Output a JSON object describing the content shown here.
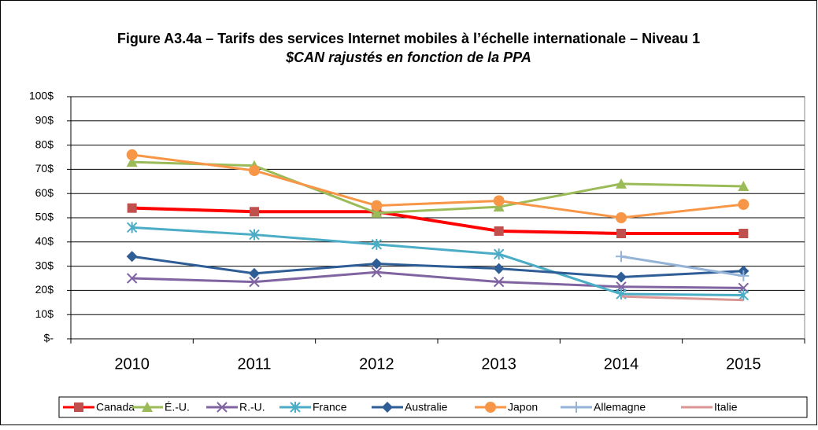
{
  "chart_data": {
    "type": "line",
    "title": "Figure A3.4a – Tarifs des services Internet mobiles à l’échelle internationale – Niveau 1",
    "subtitle": "$CAN rajustés en fonction de la PPA",
    "categories": [
      "2010",
      "2011",
      "2012",
      "2013",
      "2014",
      "2015"
    ],
    "ylim": [
      0,
      100
    ],
    "yticks": [
      {
        "value": 0,
        "label": "$-"
      },
      {
        "value": 10,
        "label": "10$"
      },
      {
        "value": 20,
        "label": "20$"
      },
      {
        "value": 30,
        "label": "30$"
      },
      {
        "value": 40,
        "label": "40$"
      },
      {
        "value": 50,
        "label": "50$"
      },
      {
        "value": 60,
        "label": "60$"
      },
      {
        "value": 70,
        "label": "70$"
      },
      {
        "value": 80,
        "label": "80$"
      },
      {
        "value": 90,
        "label": "90$"
      },
      {
        "value": 100,
        "label": "100$"
      }
    ],
    "grid": true,
    "legend": "bottom",
    "series": [
      {
        "name": "Canada",
        "color": "#ff0000",
        "marker_color": "#c0504d",
        "marker": "square",
        "values": [
          54,
          52.5,
          52.5,
          44.5,
          43.5,
          43.5
        ]
      },
      {
        "name": "É.-U.",
        "color": "#9bbb59",
        "marker_color": "#9bbb59",
        "marker": "triangle",
        "values": [
          73,
          71.5,
          52,
          54.5,
          64,
          63
        ]
      },
      {
        "name": "R.-U.",
        "color": "#8064a2",
        "marker_color": "#8064a2",
        "marker": "x",
        "values": [
          25,
          23.5,
          27.5,
          23.5,
          21.5,
          21
        ]
      },
      {
        "name": "France",
        "color": "#4bacc6",
        "marker_color": "#4bacc6",
        "marker": "star",
        "values": [
          46,
          43,
          39,
          35,
          18.5,
          18
        ]
      },
      {
        "name": "Australie",
        "color": "#2f5d96",
        "marker_color": "#2f5d96",
        "marker": "diamond",
        "values": [
          34,
          27,
          31,
          29,
          25.5,
          28
        ]
      },
      {
        "name": "Japon",
        "color": "#f79646",
        "marker_color": "#f79646",
        "marker": "circle",
        "values": [
          76,
          69.5,
          55,
          57,
          50,
          55.5
        ]
      },
      {
        "name": "Allemagne",
        "color": "#95b3d7",
        "marker_color": "#95b3d7",
        "marker": "plus",
        "values": [
          null,
          null,
          null,
          null,
          34,
          26
        ]
      },
      {
        "name": "Italie",
        "color": "#d99694",
        "marker_color": "#d99694",
        "marker": "none",
        "values": [
          null,
          null,
          null,
          null,
          17.5,
          16
        ]
      }
    ]
  }
}
